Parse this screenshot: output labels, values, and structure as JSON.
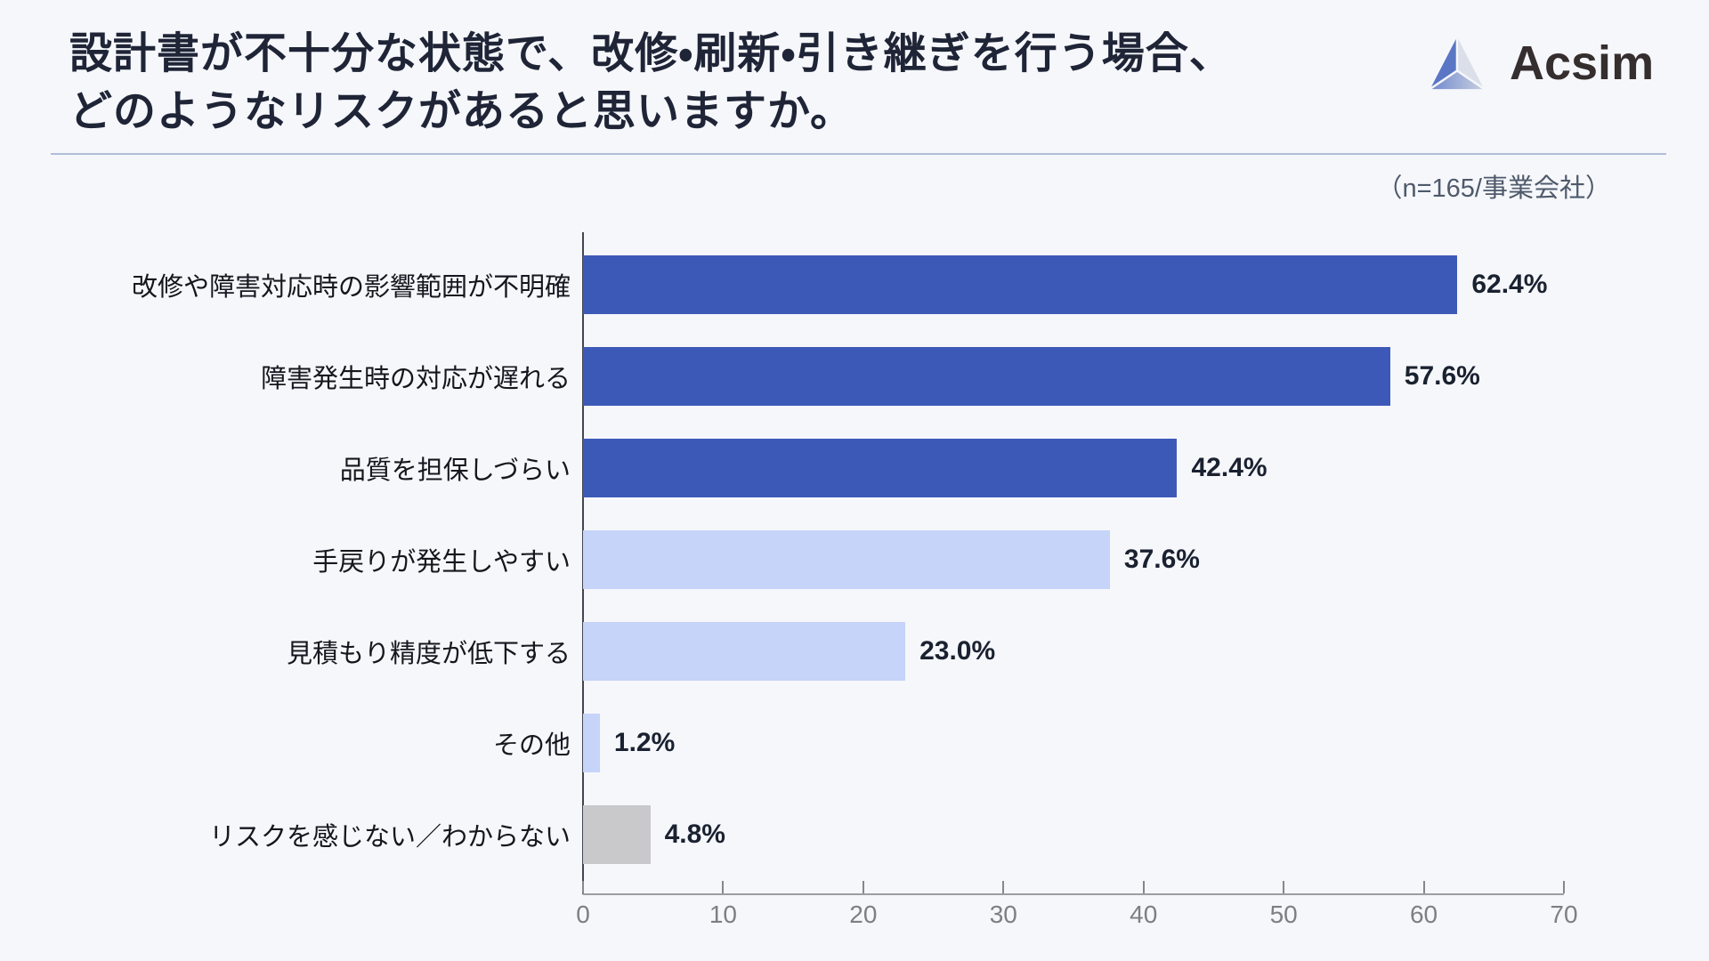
{
  "page": {
    "background": "#f6f7fb"
  },
  "header": {
    "title_lines": [
      "設計書が不十分な状態で、改修・刷新・引き継ぎを行う場合、",
      "どのようなリスクがあると思いますか。"
    ],
    "logo": {
      "text": "Acsim",
      "icon": "triangle-pyramid-icon"
    }
  },
  "sample_note": "（n=165/事業会社）",
  "chart_data": {
    "type": "bar",
    "orientation": "horizontal",
    "title": "設計書が不十分な状態で、改修・刷新・引き継ぎを行う場合、どのようなリスクがあると思いますか。",
    "categories": [
      "改修や障害対応時の影響範囲が不明確",
      "障害発生時の対応が遅れる",
      "品質を担保しづらい",
      "手戻りが発生しやすい",
      "見積もり精度が低下する",
      "その他",
      "リスクを感じない／わからない"
    ],
    "values": [
      62.4,
      57.6,
      42.4,
      37.6,
      23.0,
      1.2,
      4.8
    ],
    "value_labels": [
      "62.4%",
      "57.6%",
      "42.4%",
      "37.6%",
      "23.0%",
      "1.2%",
      "4.8%"
    ],
    "bar_colors": [
      "#3d59b8",
      "#3d59b8",
      "#3d59b8",
      "#c5d4f8",
      "#c5d4f8",
      "#c5d4f8",
      "#c9c9cc"
    ],
    "xlim": [
      0,
      70
    ],
    "x_ticks": [
      "0",
      "10",
      "20",
      "30",
      "40",
      "50",
      "60",
      "70"
    ],
    "grid": false,
    "legend": false
  },
  "colors": {
    "primary_bar": "#3d59b8",
    "secondary_bar": "#c5d4f8",
    "neutral_bar": "#c9c9cc",
    "title_text": "#1f2537",
    "axis_text": "#7c7f84",
    "note_text": "#4e5a6b",
    "divider": "#b0bed6"
  }
}
